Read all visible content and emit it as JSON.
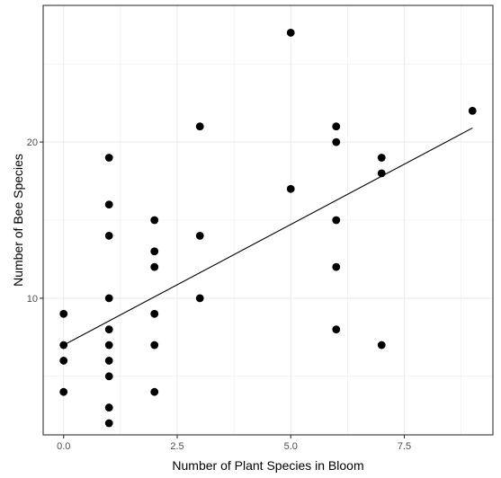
{
  "chart_data": {
    "type": "scatter",
    "title": "",
    "xlabel": "Number of Plant Species in Bloom",
    "ylabel": "Number of Bee Species",
    "xlim": [
      -0.45,
      9.45
    ],
    "ylim": [
      1.25,
      28.75
    ],
    "x_ticks": [
      0.0,
      2.5,
      5.0,
      7.5
    ],
    "x_tick_labels": [
      "0.0",
      "2.5",
      "5.0",
      "7.5"
    ],
    "y_ticks": [
      10,
      20
    ],
    "y_tick_labels": [
      "10",
      "20"
    ],
    "grid": true,
    "legend": "none",
    "points": [
      {
        "x": 0,
        "y": 4
      },
      {
        "x": 0,
        "y": 6
      },
      {
        "x": 0,
        "y": 7
      },
      {
        "x": 0,
        "y": 9
      },
      {
        "x": 1,
        "y": 2
      },
      {
        "x": 1,
        "y": 3
      },
      {
        "x": 1,
        "y": 5
      },
      {
        "x": 1,
        "y": 6
      },
      {
        "x": 1,
        "y": 7
      },
      {
        "x": 1,
        "y": 8
      },
      {
        "x": 1,
        "y": 10
      },
      {
        "x": 1,
        "y": 14
      },
      {
        "x": 1,
        "y": 16
      },
      {
        "x": 1,
        "y": 19
      },
      {
        "x": 2,
        "y": 4
      },
      {
        "x": 2,
        "y": 7
      },
      {
        "x": 2,
        "y": 9
      },
      {
        "x": 2,
        "y": 12
      },
      {
        "x": 2,
        "y": 13
      },
      {
        "x": 2,
        "y": 15
      },
      {
        "x": 3,
        "y": 10
      },
      {
        "x": 3,
        "y": 14
      },
      {
        "x": 3,
        "y": 21
      },
      {
        "x": 5,
        "y": 17
      },
      {
        "x": 5,
        "y": 27
      },
      {
        "x": 6,
        "y": 8
      },
      {
        "x": 6,
        "y": 12
      },
      {
        "x": 6,
        "y": 15
      },
      {
        "x": 6,
        "y": 20
      },
      {
        "x": 6,
        "y": 21
      },
      {
        "x": 7,
        "y": 7
      },
      {
        "x": 7,
        "y": 18
      },
      {
        "x": 7,
        "y": 19
      },
      {
        "x": 9,
        "y": 22
      }
    ],
    "fit_line": [
      {
        "x": 0,
        "y": 7.0
      },
      {
        "x": 9,
        "y": 20.9
      }
    ],
    "colors": {
      "points": "#000000",
      "line": "#000000",
      "grid": "#ebebeb",
      "panel_border": "#333333",
      "background": "#ffffff"
    }
  }
}
